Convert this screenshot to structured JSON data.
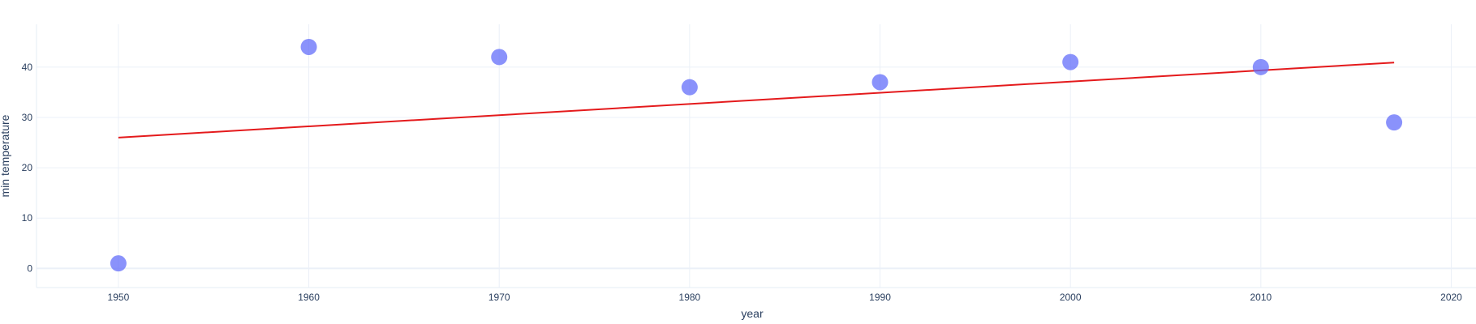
{
  "chart_data": {
    "type": "scatter",
    "xlabel": "year",
    "ylabel": "min temperature",
    "xlim": [
      1945.7,
      2021.3
    ],
    "ylim": [
      -3.8,
      48.5
    ],
    "x_ticks": [
      1950,
      1960,
      1970,
      1980,
      1990,
      2000,
      2010,
      2020
    ],
    "y_ticks": [
      0,
      10,
      20,
      30,
      40
    ],
    "grid": true,
    "legend": "none",
    "series": [
      {
        "type": "scatter",
        "color": "#636efa",
        "x": [
          1950,
          1960,
          1970,
          1980,
          1990,
          2000,
          2010,
          2017
        ],
        "y": [
          1,
          44,
          42,
          36,
          37,
          41,
          40,
          29
        ]
      },
      {
        "type": "line",
        "color": "#e41a1c",
        "x": [
          1950,
          2017
        ],
        "y": [
          26.0,
          40.9
        ]
      }
    ]
  }
}
